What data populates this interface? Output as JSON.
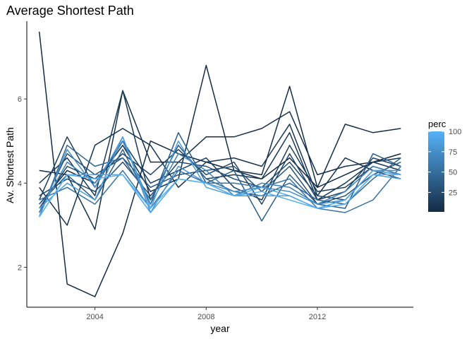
{
  "chart_data": {
    "type": "line",
    "title": "Average Shortest Path",
    "xlabel": "year",
    "ylabel": "Av. Shortest Path",
    "x": [
      2002,
      2003,
      2004,
      2005,
      2006,
      2007,
      2008,
      2009,
      2010,
      2011,
      2012,
      2013,
      2014,
      2015
    ],
    "xlim": [
      2001.55,
      2015.45
    ],
    "ylim": [
      1.05,
      7.85
    ],
    "xticks": [
      2004,
      2008,
      2012
    ],
    "xtick_labels": [
      "2004",
      "2008",
      "2012"
    ],
    "yticks": [
      2,
      4,
      6
    ],
    "ytick_labels": [
      "2",
      "4",
      "6"
    ],
    "grid": false,
    "legend": {
      "title": "perc",
      "position": "right",
      "type": "colorbar",
      "range": [
        1,
        100
      ],
      "ticks": [
        25,
        50,
        75,
        100
      ],
      "tick_labels": [
        "25",
        "50",
        "75",
        "100"
      ],
      "low_color": "#132B43",
      "high_color": "#56B1F7"
    },
    "series": [
      {
        "perc": 1,
        "values": [
          7.6,
          1.6,
          1.3,
          2.8,
          5.0,
          4.7,
          4.5,
          4.3,
          4.1,
          4.6,
          3.9,
          4.2,
          4.5,
          4.7
        ]
      },
      {
        "perc": 3,
        "values": [
          3.5,
          4.3,
          4.0,
          4.9,
          3.8,
          4.1,
          6.8,
          4.3,
          4.2,
          6.3,
          3.9,
          5.4,
          5.2,
          5.3
        ]
      },
      {
        "perc": 5,
        "values": [
          4.3,
          4.2,
          2.9,
          6.2,
          4.5,
          4.5,
          5.1,
          5.1,
          5.3,
          5.7,
          4.2,
          4.4,
          4.5,
          4.6
        ]
      },
      {
        "perc": 8,
        "values": [
          3.9,
          3.0,
          4.9,
          5.3,
          4.9,
          3.9,
          4.5,
          4.6,
          4.4,
          5.4,
          3.7,
          4.6,
          4.3,
          4.2
        ]
      },
      {
        "perc": 11,
        "values": [
          4.0,
          4.6,
          3.7,
          6.2,
          3.6,
          4.9,
          4.1,
          4.2,
          4.1,
          5.2,
          3.6,
          4.0,
          4.5,
          4.3
        ]
      },
      {
        "perc": 15,
        "values": [
          3.6,
          5.1,
          3.9,
          5.0,
          4.0,
          4.3,
          4.6,
          3.9,
          3.6,
          4.9,
          3.8,
          3.9,
          4.4,
          4.2
        ]
      },
      {
        "perc": 20,
        "values": [
          3.4,
          4.4,
          4.1,
          4.7,
          4.2,
          4.8,
          4.2,
          4.5,
          3.5,
          4.7,
          3.6,
          3.8,
          4.6,
          4.4
        ]
      },
      {
        "perc": 25,
        "values": [
          3.7,
          4.1,
          3.8,
          4.5,
          3.7,
          4.5,
          4.4,
          4.1,
          3.9,
          4.5,
          3.7,
          3.6,
          4.3,
          4.1
        ]
      },
      {
        "perc": 30,
        "values": [
          3.3,
          4.7,
          4.2,
          4.6,
          3.9,
          4.2,
          4.3,
          4.4,
          3.8,
          4.4,
          3.5,
          3.7,
          4.2,
          4.5
        ]
      },
      {
        "perc": 38,
        "values": [
          3.5,
          4.2,
          3.6,
          4.8,
          3.5,
          5.2,
          4.0,
          4.3,
          3.1,
          4.2,
          3.5,
          3.4,
          4.7,
          4.4
        ]
      },
      {
        "perc": 45,
        "values": [
          3.2,
          4.9,
          4.4,
          4.6,
          3.6,
          4.9,
          4.1,
          3.8,
          3.7,
          4.0,
          3.6,
          3.5,
          4.1,
          4.6
        ]
      },
      {
        "perc": 55,
        "values": [
          3.6,
          3.9,
          3.5,
          4.3,
          3.4,
          4.3,
          4.0,
          4.0,
          3.9,
          4.1,
          3.4,
          3.3,
          3.6,
          4.4
        ]
      },
      {
        "perc": 65,
        "values": [
          3.3,
          4.5,
          4.0,
          5.0,
          3.5,
          4.7,
          4.3,
          3.7,
          4.0,
          3.9,
          3.5,
          3.8,
          4.4,
          4.2
        ]
      },
      {
        "perc": 75,
        "values": [
          3.2,
          4.8,
          3.9,
          5.1,
          3.3,
          4.4,
          4.0,
          3.8,
          3.9,
          3.8,
          3.5,
          3.6,
          4.3,
          4.3
        ]
      },
      {
        "perc": 85,
        "values": [
          3.4,
          4.0,
          3.6,
          5.1,
          3.4,
          5.0,
          3.9,
          3.7,
          3.7,
          3.7,
          3.4,
          3.5,
          4.2,
          4.1
        ]
      },
      {
        "perc": 92,
        "values": [
          3.2,
          4.2,
          4.2,
          4.2,
          3.3,
          4.1,
          4.0,
          3.7,
          3.9,
          3.7,
          3.4,
          3.6,
          4.3,
          4.2
        ]
      },
      {
        "perc": 100,
        "values": [
          3.2,
          4.2,
          4.1,
          4.2,
          3.4,
          4.1,
          4.0,
          3.7,
          3.8,
          3.6,
          3.4,
          3.5,
          4.2,
          4.2
        ]
      }
    ]
  }
}
